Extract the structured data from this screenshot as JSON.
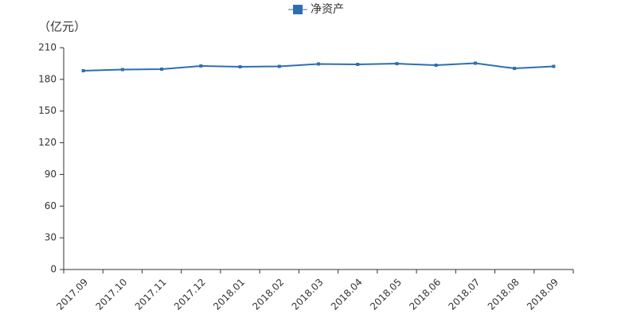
{
  "chart_data": {
    "type": "line",
    "y_label": "（亿元）",
    "categories": [
      "2017.09",
      "2017.10",
      "2017.11",
      "2017.12",
      "2018.01",
      "2018.02",
      "2018.03",
      "2018.04",
      "2018.05",
      "2018.06",
      "2018.07",
      "2018.08",
      "2018.09"
    ],
    "series": [
      {
        "name": "净资产",
        "color": "#2e6fb0",
        "values": [
          188.2,
          189.3,
          189.7,
          192.7,
          191.9,
          192.3,
          194.6,
          194.2,
          194.9,
          193.4,
          195.3,
          190.4,
          192.3
        ]
      }
    ],
    "ylim": [
      0,
      210
    ],
    "yticks": [
      0,
      30,
      60,
      90,
      120,
      150,
      180,
      210
    ],
    "grid": false,
    "legend": "top"
  }
}
